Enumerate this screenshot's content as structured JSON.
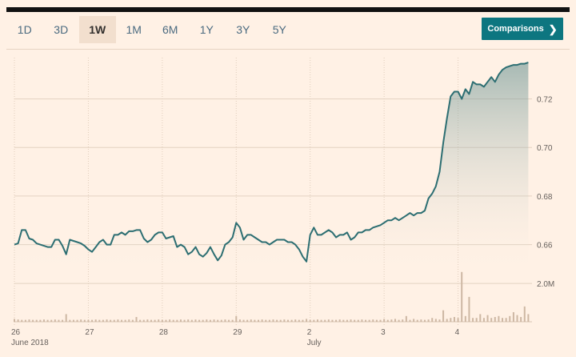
{
  "periods": [
    "1D",
    "3D",
    "1W",
    "1M",
    "6M",
    "1Y",
    "3Y",
    "5Y"
  ],
  "active_period": "1W",
  "comparisons_label": "Comparisons",
  "colors": {
    "line": "#2c6e72",
    "area_top": "#5f8c8c",
    "volume": "#cdb7a3",
    "accent": "#0d7680",
    "background": "#fff1e5"
  },
  "chart_data": [
    {
      "type": "line",
      "title": "",
      "xlabel": "",
      "ylabel": "",
      "x_tick_labels": [
        "26",
        "27",
        "28",
        "29",
        "2",
        "3",
        "4"
      ],
      "x_sub_labels": [
        "June 2018",
        "",
        "",
        "",
        "July",
        "",
        ""
      ],
      "y_ticks": [
        0.66,
        0.68,
        0.7,
        0.72
      ],
      "y_tick_labels": [
        "0.66",
        "0.68",
        "0.70",
        "0.72"
      ],
      "ylim": [
        0.647,
        0.737
      ],
      "x_range": [
        0,
        7
      ],
      "grid": true,
      "fill_area": true,
      "x": [
        0.0,
        0.05,
        0.1,
        0.15,
        0.2,
        0.25,
        0.3,
        0.35,
        0.4,
        0.45,
        0.5,
        0.55,
        0.6,
        0.65,
        0.7,
        0.75,
        0.8,
        0.85,
        0.9,
        0.95,
        1.0,
        1.05,
        1.1,
        1.15,
        1.2,
        1.25,
        1.3,
        1.35,
        1.4,
        1.45,
        1.5,
        1.55,
        1.6,
        1.65,
        1.7,
        1.75,
        1.8,
        1.85,
        1.9,
        1.95,
        2.0,
        2.05,
        2.1,
        2.15,
        2.2,
        2.25,
        2.3,
        2.35,
        2.4,
        2.45,
        2.5,
        2.55,
        2.6,
        2.65,
        2.7,
        2.75,
        2.8,
        2.85,
        2.9,
        2.95,
        3.0,
        3.05,
        3.1,
        3.15,
        3.2,
        3.25,
        3.3,
        3.35,
        3.4,
        3.45,
        3.5,
        3.55,
        3.6,
        3.65,
        3.7,
        3.75,
        3.8,
        3.85,
        3.9,
        3.95,
        4.0,
        4.05,
        4.1,
        4.15,
        4.2,
        4.25,
        4.3,
        4.35,
        4.4,
        4.45,
        4.5,
        4.55,
        4.6,
        4.65,
        4.7,
        4.75,
        4.8,
        4.85,
        4.9,
        4.95,
        5.0,
        5.05,
        5.1,
        5.15,
        5.2,
        5.25,
        5.3,
        5.35,
        5.4,
        5.45,
        5.5,
        5.55,
        5.6,
        5.65,
        5.7,
        5.75,
        5.8,
        5.85,
        5.9,
        5.95,
        6.0,
        6.05,
        6.1,
        6.15,
        6.2,
        6.25,
        6.3,
        6.35,
        6.4,
        6.45,
        6.5,
        6.55,
        6.6,
        6.65,
        6.7,
        6.75,
        6.8,
        6.85,
        6.9,
        6.95
      ],
      "y": [
        0.66,
        0.6605,
        0.666,
        0.666,
        0.6625,
        0.662,
        0.6605,
        0.66,
        0.6595,
        0.659,
        0.659,
        0.662,
        0.662,
        0.6595,
        0.656,
        0.662,
        0.6615,
        0.661,
        0.6605,
        0.6595,
        0.658,
        0.657,
        0.659,
        0.661,
        0.662,
        0.66,
        0.66,
        0.664,
        0.664,
        0.665,
        0.664,
        0.6655,
        0.6655,
        0.666,
        0.666,
        0.6625,
        0.661,
        0.662,
        0.664,
        0.665,
        0.665,
        0.6625,
        0.663,
        0.6635,
        0.659,
        0.66,
        0.659,
        0.656,
        0.657,
        0.659,
        0.656,
        0.655,
        0.6565,
        0.659,
        0.656,
        0.6535,
        0.6555,
        0.66,
        0.661,
        0.663,
        0.669,
        0.667,
        0.662,
        0.664,
        0.664,
        0.663,
        0.662,
        0.661,
        0.661,
        0.66,
        0.661,
        0.662,
        0.662,
        0.662,
        0.661,
        0.661,
        0.66,
        0.658,
        0.655,
        0.653,
        0.664,
        0.667,
        0.664,
        0.664,
        0.665,
        0.666,
        0.665,
        0.663,
        0.664,
        0.664,
        0.665,
        0.662,
        0.663,
        0.665,
        0.665,
        0.666,
        0.666,
        0.667,
        0.6675,
        0.668,
        0.669,
        0.67,
        0.67,
        0.671,
        0.67,
        0.671,
        0.672,
        0.673,
        0.672,
        0.673,
        0.673,
        0.674,
        0.679,
        0.681,
        0.684,
        0.69,
        0.702,
        0.712,
        0.721,
        0.723,
        0.723,
        0.72,
        0.724,
        0.722,
        0.727,
        0.726,
        0.726,
        0.725,
        0.727,
        0.729,
        0.727,
        0.73,
        0.732,
        0.733,
        0.7335,
        0.734,
        0.734,
        0.7345,
        0.7345,
        0.735
      ],
      "volume_y_ticks": [
        2000000
      ],
      "volume_y_tick_labels": [
        "2.0M"
      ],
      "volume_ylim": [
        0,
        2800000
      ],
      "volume": [
        0.15,
        0.12,
        0.1,
        0.1,
        0.12,
        0.1,
        0.1,
        0.1,
        0.12,
        0.1,
        0.1,
        0.12,
        0.1,
        0.1,
        0.4,
        0.1,
        0.1,
        0.1,
        0.12,
        0.1,
        0.1,
        0.1,
        0.12,
        0.1,
        0.1,
        0.12,
        0.1,
        0.1,
        0.12,
        0.1,
        0.1,
        0.12,
        0.1,
        0.25,
        0.1,
        0.1,
        0.12,
        0.1,
        0.1,
        0.12,
        0.1,
        0.1,
        0.12,
        0.1,
        0.1,
        0.12,
        0.1,
        0.12,
        0.1,
        0.12,
        0.1,
        0.1,
        0.12,
        0.1,
        0.12,
        0.1,
        0.1,
        0.12,
        0.1,
        0.1,
        0.3,
        0.12,
        0.1,
        0.1,
        0.12,
        0.1,
        0.1,
        0.12,
        0.1,
        0.1,
        0.12,
        0.1,
        0.1,
        0.12,
        0.1,
        0.1,
        0.12,
        0.1,
        0.1,
        0.15,
        0.1,
        0.1,
        0.12,
        0.1,
        0.1,
        0.12,
        0.1,
        0.1,
        0.12,
        0.1,
        0.1,
        0.12,
        0.1,
        0.1,
        0.12,
        0.1,
        0.1,
        0.12,
        0.1,
        0.1,
        0.15,
        0.1,
        0.12,
        0.15,
        0.1,
        0.12,
        0.3,
        0.1,
        0.15,
        0.1,
        0.12,
        0.1,
        0.12,
        0.2,
        0.15,
        0.12,
        0.6,
        0.15,
        0.2,
        0.25,
        0.2,
        2.6,
        0.3,
        1.3,
        0.2,
        0.2,
        0.4,
        0.2,
        0.35,
        0.2,
        0.25,
        0.3,
        0.2,
        0.2,
        0.3,
        0.5,
        0.35,
        0.25,
        0.8,
        0.4
      ]
    }
  ]
}
